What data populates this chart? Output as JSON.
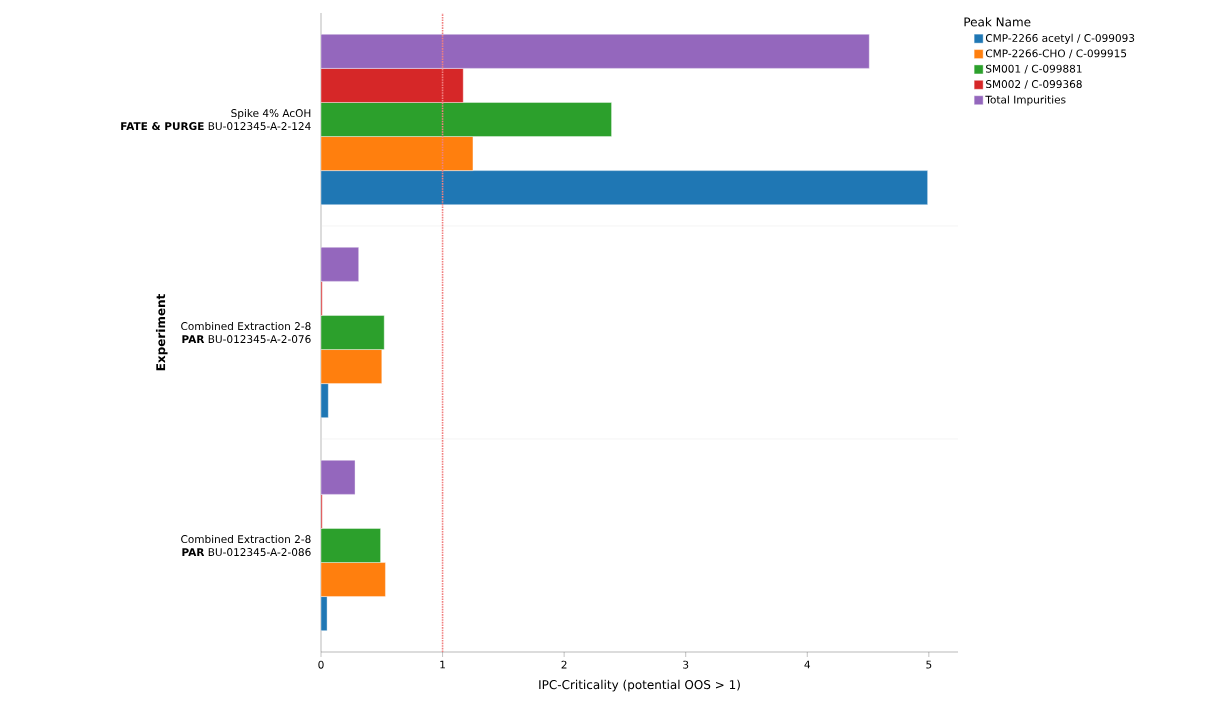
{
  "chart_data": {
    "type": "bar",
    "orientation": "horizontal",
    "xlabel": "IPC-Criticality (potential OOS > 1)",
    "ylabel": "Experiment",
    "legend_title": "Peak Name",
    "categories": [
      "Spike 4% AcOH\n**FATE & PURGE** BU-012345-A-2-124",
      "Combined Extraction 2-8\n**PAR** BU-012345-A-2-076",
      "Combined Extraction 2-8\n**PAR** BU-012345-A-2-086"
    ],
    "series": [
      {
        "name": "CMP-2266 acetyl / C-099093",
        "color": "#1f77b4",
        "values": [
          4.99,
          0.06,
          0.05
        ]
      },
      {
        "name": "CMP-2266-CHO / C-099915",
        "color": "#ff7f0e",
        "values": [
          1.25,
          0.5,
          0.53
        ]
      },
      {
        "name": "SM001 / C-099881",
        "color": "#2ca02c",
        "values": [
          2.39,
          0.52,
          0.49
        ]
      },
      {
        "name": "SM002 / C-099368",
        "color": "#d62728",
        "values": [
          1.17,
          0.01,
          0.01
        ]
      },
      {
        "name": "Total Impurities",
        "color": "#9467bd",
        "values": [
          4.51,
          0.31,
          0.28
        ]
      }
    ],
    "xlim": [
      0,
      5.24
    ],
    "xticks": [
      0,
      1,
      2,
      3,
      4,
      5
    ],
    "ref_lines": [
      {
        "axis": "x",
        "value": 1,
        "color": "#f08080",
        "line_style": "dotted"
      }
    ],
    "grid": "y",
    "legend": "top right"
  }
}
